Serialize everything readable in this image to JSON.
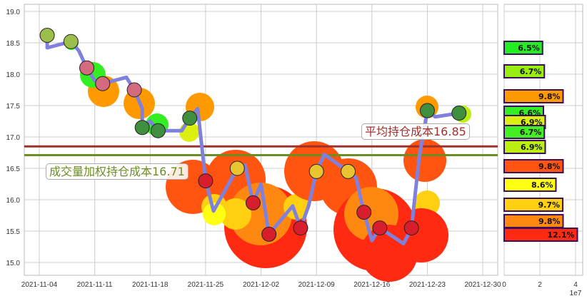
{
  "chart_data": [
    {
      "type": "line",
      "title": "",
      "xlabel": "",
      "ylabel": "",
      "ylim": [
        14.8,
        19.1
      ],
      "xlim": [
        "2021-11-02",
        "2021-12-31"
      ],
      "grid": true,
      "yticks": [
        "15.0",
        "15.5",
        "16.0",
        "16.5",
        "17.0",
        "17.5",
        "18.0",
        "18.5",
        "19.0"
      ],
      "xticks": [
        "2021-11-04",
        "2021-11-11",
        "2021-11-18",
        "2021-11-25",
        "2021-12-02",
        "2021-12-09",
        "2021-12-16",
        "2021-12-23",
        "2021-12-30"
      ],
      "line_color": "#8080dd",
      "series": [
        {
          "name": "price",
          "x": [
            "2021-11-05",
            "2021-11-05",
            "2021-11-08",
            "2021-11-09",
            "2021-11-10",
            "2021-11-11",
            "2021-11-12",
            "2021-11-15",
            "2021-11-16",
            "2021-11-17",
            "2021-11-17",
            "2021-11-18",
            "2021-11-19",
            "2021-11-22",
            "2021-11-23",
            "2021-11-24",
            "2021-11-25",
            "2021-11-26",
            "2021-11-29",
            "2021-11-30",
            "2021-12-01",
            "2021-12-02",
            "2021-12-03",
            "2021-12-06",
            "2021-12-07",
            "2021-12-08",
            "2021-12-09",
            "2021-12-10",
            "2021-12-13",
            "2021-12-14",
            "2021-12-15",
            "2021-12-16",
            "2021-12-17",
            "2021-12-20",
            "2021-12-21",
            "2021-12-22",
            "2021-12-23",
            "2021-12-24",
            "2021-12-27"
          ],
          "values": [
            18.62,
            18.42,
            18.52,
            18.37,
            18.1,
            17.9,
            17.85,
            17.95,
            17.75,
            17.45,
            17.15,
            17.25,
            17.1,
            17.1,
            17.3,
            17.45,
            16.3,
            15.82,
            16.5,
            16.55,
            15.95,
            16.25,
            15.45,
            15.9,
            15.55,
            15.9,
            16.45,
            16.72,
            16.45,
            16.35,
            15.8,
            15.35,
            15.55,
            15.3,
            15.55,
            16.7,
            17.42,
            17.32,
            17.38
          ]
        }
      ],
      "hlines": [
        {
          "label": "平均持仓成本16.85",
          "value": 16.85,
          "color": "#a0302a"
        },
        {
          "label": "成交量加权持仓成本16.71",
          "value": 16.71,
          "color": "#6b8e23"
        }
      ]
    },
    {
      "type": "bar",
      "orientation": "horizontal",
      "xlim": [
        0,
        45000000
      ],
      "xticks": [
        "0",
        "2",
        "4"
      ],
      "x_offset_label": "1e7",
      "bars": [
        {
          "price_level": 18.4,
          "value": 21500000,
          "label": "6.5%",
          "color": "#22ee22"
        },
        {
          "price_level": 18.05,
          "value": 22500000,
          "label": "6.7%",
          "color": "#99ee11"
        },
        {
          "price_level": 17.65,
          "value": 33000000,
          "label": "9.8%",
          "color": "#ff9900"
        },
        {
          "price_level": 17.38,
          "value": 22000000,
          "label": "6.6%",
          "color": "#33ee22"
        },
        {
          "price_level": 17.24,
          "value": 23000000,
          "label": "6.9%",
          "color": "#ddee11"
        },
        {
          "price_level": 17.07,
          "value": 22500000,
          "label": "6.7%",
          "color": "#44ee22"
        },
        {
          "price_level": 16.85,
          "value": 23000000,
          "label": "6.9%",
          "color": "#bbee11"
        },
        {
          "price_level": 16.5,
          "value": 33000000,
          "label": "9.8%",
          "color": "#ff5511"
        },
        {
          "price_level": 16.2,
          "value": 29000000,
          "label": "8.6%",
          "color": "#ffff11"
        },
        {
          "price_level": 15.9,
          "value": 32800000,
          "label": "9.7%",
          "color": "#ffd011"
        },
        {
          "price_level": 15.65,
          "value": 33000000,
          "label": "9.8%",
          "color": "#ff8811"
        },
        {
          "price_level": 15.4,
          "value": 41000000,
          "label": "12.1%",
          "color": "#ff2a11"
        }
      ]
    }
  ],
  "annotations": {
    "avg_cost": "平均持仓成本16.85",
    "vwap_cost": "成交量加权持仓成本16.71"
  },
  "colors": {
    "grid": "#cccccc",
    "axis": "#bbbbbb",
    "avg_line": "#a0302a",
    "vwap_line": "#6b8e23",
    "price_line": "#8080dd",
    "bar_border": "#3a0f5e"
  }
}
